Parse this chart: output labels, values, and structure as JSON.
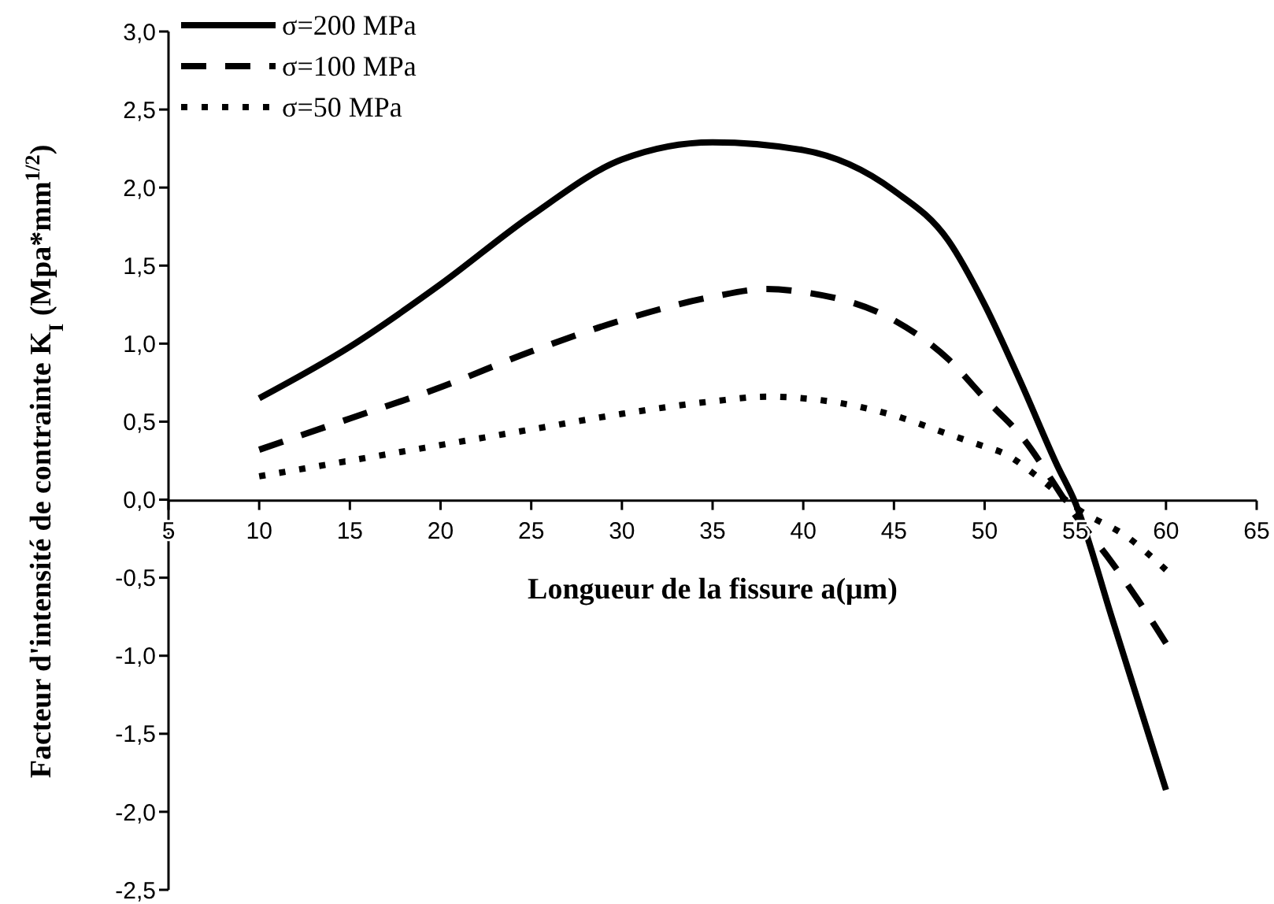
{
  "chart_data": {
    "type": "line",
    "xlabel": "Longueur de la fissure  a(μm)",
    "ylabel": "Facteur d'intensité de contrainte  K$_{I}$ (Mpa*mm$^{1/2}$)",
    "xlim": [
      5,
      65
    ],
    "xticks": [
      5,
      10,
      15,
      20,
      25,
      30,
      35,
      40,
      45,
      50,
      55,
      60,
      65
    ],
    "ylim": [
      -2.5,
      3.0
    ],
    "yticks": [
      {
        "value": -2.5,
        "label": "-2,5"
      },
      {
        "value": -2,
        "label": "-2,0"
      },
      {
        "value": -1.5,
        "label": "-1,5"
      },
      {
        "value": -1,
        "label": "-1,0"
      },
      {
        "value": -0.5,
        "label": "-0,5"
      },
      {
        "value": 0,
        "label": "0,0"
      },
      {
        "value": 0.5,
        "label": "0,5"
      },
      {
        "value": 1,
        "label": "1,0"
      },
      {
        "value": 1.5,
        "label": "1,5"
      },
      {
        "value": 2,
        "label": "2,0"
      },
      {
        "value": 2.5,
        "label": "2,5"
      },
      {
        "value": 3,
        "label": "3,0"
      }
    ],
    "grid": false,
    "legend": "top left",
    "marker": "none",
    "series": [
      {
        "name": "σ=200 MPa",
        "color": "#000000",
        "line_style": "solid",
        "x": [
          10,
          15,
          20,
          25,
          30,
          35,
          40,
          45,
          48,
          50,
          52,
          54,
          55,
          57,
          58,
          60
        ],
        "values": [
          0.65,
          0.98,
          1.38,
          1.82,
          2.18,
          2.29,
          2.24,
          1.98,
          1.66,
          1.25,
          0.75,
          0.22,
          -0.02,
          -0.75,
          -1.12,
          -1.86
        ]
      },
      {
        "name": "σ=100 MPa",
        "color": "#000000",
        "line_style": "dashed",
        "x": [
          10,
          15,
          20,
          25,
          30,
          35,
          38,
          40,
          45,
          48,
          50,
          52,
          55,
          57,
          58.5,
          60
        ],
        "values": [
          0.32,
          0.52,
          0.72,
          0.95,
          1.15,
          1.3,
          1.35,
          1.33,
          1.15,
          0.9,
          0.65,
          0.41,
          -0.1,
          -0.4,
          -0.65,
          -0.92
        ]
      },
      {
        "name": "σ=50 MPa",
        "color": "#000000",
        "line_style": "dotted",
        "x": [
          10,
          15,
          20,
          25,
          30,
          35,
          38,
          42,
          45,
          48,
          50,
          51,
          53,
          55,
          58,
          60
        ],
        "values": [
          0.15,
          0.25,
          0.35,
          0.45,
          0.55,
          0.63,
          0.66,
          0.62,
          0.54,
          0.42,
          0.34,
          0.3,
          0.14,
          -0.05,
          -0.25,
          -0.45
        ]
      }
    ]
  }
}
